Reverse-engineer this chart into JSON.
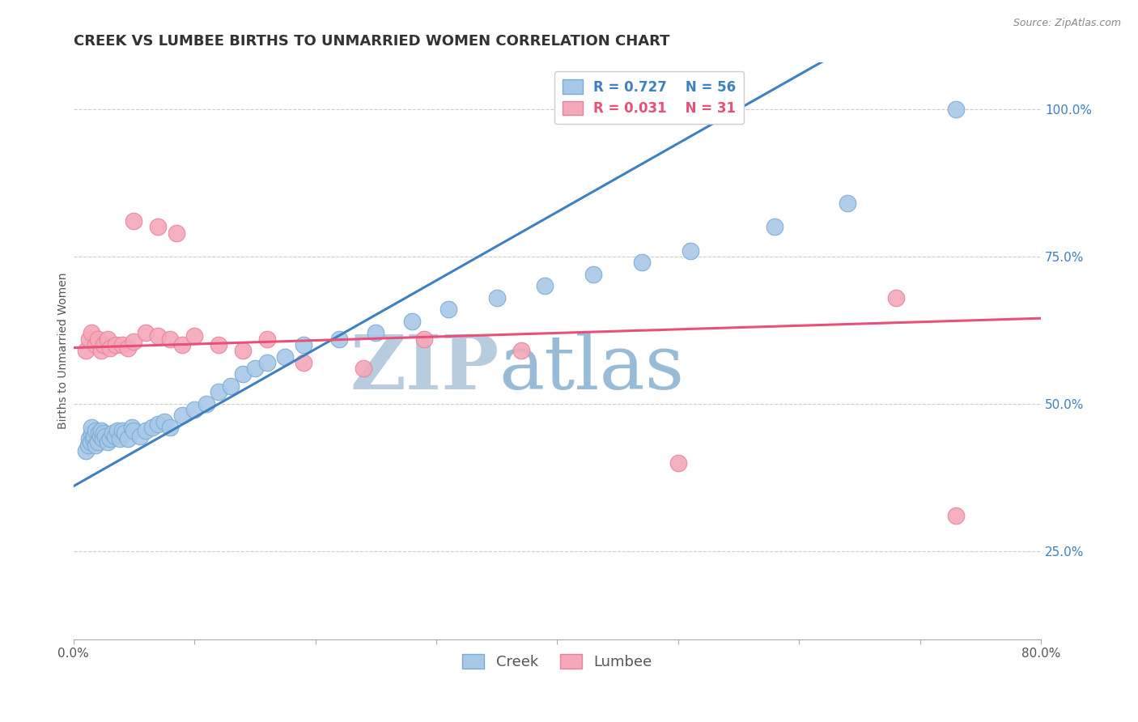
{
  "title": "CREEK VS LUMBEE BIRTHS TO UNMARRIED WOMEN CORRELATION CHART",
  "source": "Source: ZipAtlas.com",
  "ylabel": "Births to Unmarried Women",
  "xlim": [
    0.0,
    0.8
  ],
  "ylim": [
    0.1,
    1.08
  ],
  "xticks": [
    0.0,
    0.1,
    0.2,
    0.3,
    0.4,
    0.5,
    0.6,
    0.7,
    0.8
  ],
  "xticklabels": [
    "0.0%",
    "",
    "",
    "",
    "",
    "",
    "",
    "",
    "80.0%"
  ],
  "yticks": [
    0.25,
    0.5,
    0.75,
    1.0
  ],
  "yticklabels": [
    "25.0%",
    "50.0%",
    "75.0%",
    "100.0%"
  ],
  "creek_color": "#A8C8E8",
  "lumbee_color": "#F4A8B8",
  "creek_edge_color": "#7AAAD0",
  "lumbee_edge_color": "#E880A0",
  "creek_line_color": "#4080C0",
  "lumbee_line_color": "#E8507A",
  "background_color": "#FFFFFF",
  "grid_color": "#CCCCCC",
  "creek_R": 0.727,
  "creek_N": 56,
  "lumbee_R": 0.031,
  "lumbee_N": 31,
  "creek_x": [
    0.01,
    0.012,
    0.013,
    0.014,
    0.015,
    0.015,
    0.016,
    0.017,
    0.018,
    0.018,
    0.02,
    0.021,
    0.022,
    0.023,
    0.024,
    0.025,
    0.026,
    0.028,
    0.03,
    0.032,
    0.034,
    0.036,
    0.038,
    0.04,
    0.042,
    0.045,
    0.048,
    0.05,
    0.055,
    0.06,
    0.065,
    0.07,
    0.075,
    0.08,
    0.09,
    0.1,
    0.11,
    0.12,
    0.13,
    0.14,
    0.15,
    0.16,
    0.175,
    0.19,
    0.22,
    0.25,
    0.28,
    0.31,
    0.35,
    0.39,
    0.43,
    0.47,
    0.51,
    0.58,
    0.64,
    0.73
  ],
  "creek_y": [
    0.42,
    0.43,
    0.44,
    0.435,
    0.45,
    0.46,
    0.44,
    0.445,
    0.43,
    0.455,
    0.435,
    0.45,
    0.445,
    0.455,
    0.44,
    0.45,
    0.445,
    0.435,
    0.44,
    0.45,
    0.445,
    0.455,
    0.44,
    0.455,
    0.45,
    0.44,
    0.46,
    0.455,
    0.445,
    0.455,
    0.46,
    0.465,
    0.47,
    0.46,
    0.48,
    0.49,
    0.5,
    0.52,
    0.53,
    0.55,
    0.56,
    0.57,
    0.58,
    0.6,
    0.61,
    0.62,
    0.64,
    0.66,
    0.68,
    0.7,
    0.72,
    0.74,
    0.76,
    0.8,
    0.84,
    1.0
  ],
  "lumbee_x": [
    0.01,
    0.013,
    0.015,
    0.018,
    0.02,
    0.023,
    0.025,
    0.028,
    0.03,
    0.035,
    0.04,
    0.045,
    0.05,
    0.06,
    0.07,
    0.08,
    0.09,
    0.1,
    0.12,
    0.14,
    0.16,
    0.19,
    0.24,
    0.29,
    0.37,
    0.5,
    0.68,
    0.73,
    0.05,
    0.07,
    0.085
  ],
  "lumbee_y": [
    0.59,
    0.61,
    0.62,
    0.6,
    0.61,
    0.59,
    0.6,
    0.61,
    0.595,
    0.6,
    0.6,
    0.595,
    0.605,
    0.62,
    0.615,
    0.61,
    0.6,
    0.615,
    0.6,
    0.59,
    0.61,
    0.57,
    0.56,
    0.61,
    0.59,
    0.4,
    0.68,
    0.31,
    0.81,
    0.8,
    0.79
  ],
  "watermark_top": "ZIP",
  "watermark_bottom": "atlas",
  "watermark_color_top": "#B8CCE0",
  "watermark_color_bottom": "#98BCD8",
  "title_fontsize": 13,
  "label_fontsize": 10,
  "tick_fontsize": 11,
  "legend_fontsize": 12
}
